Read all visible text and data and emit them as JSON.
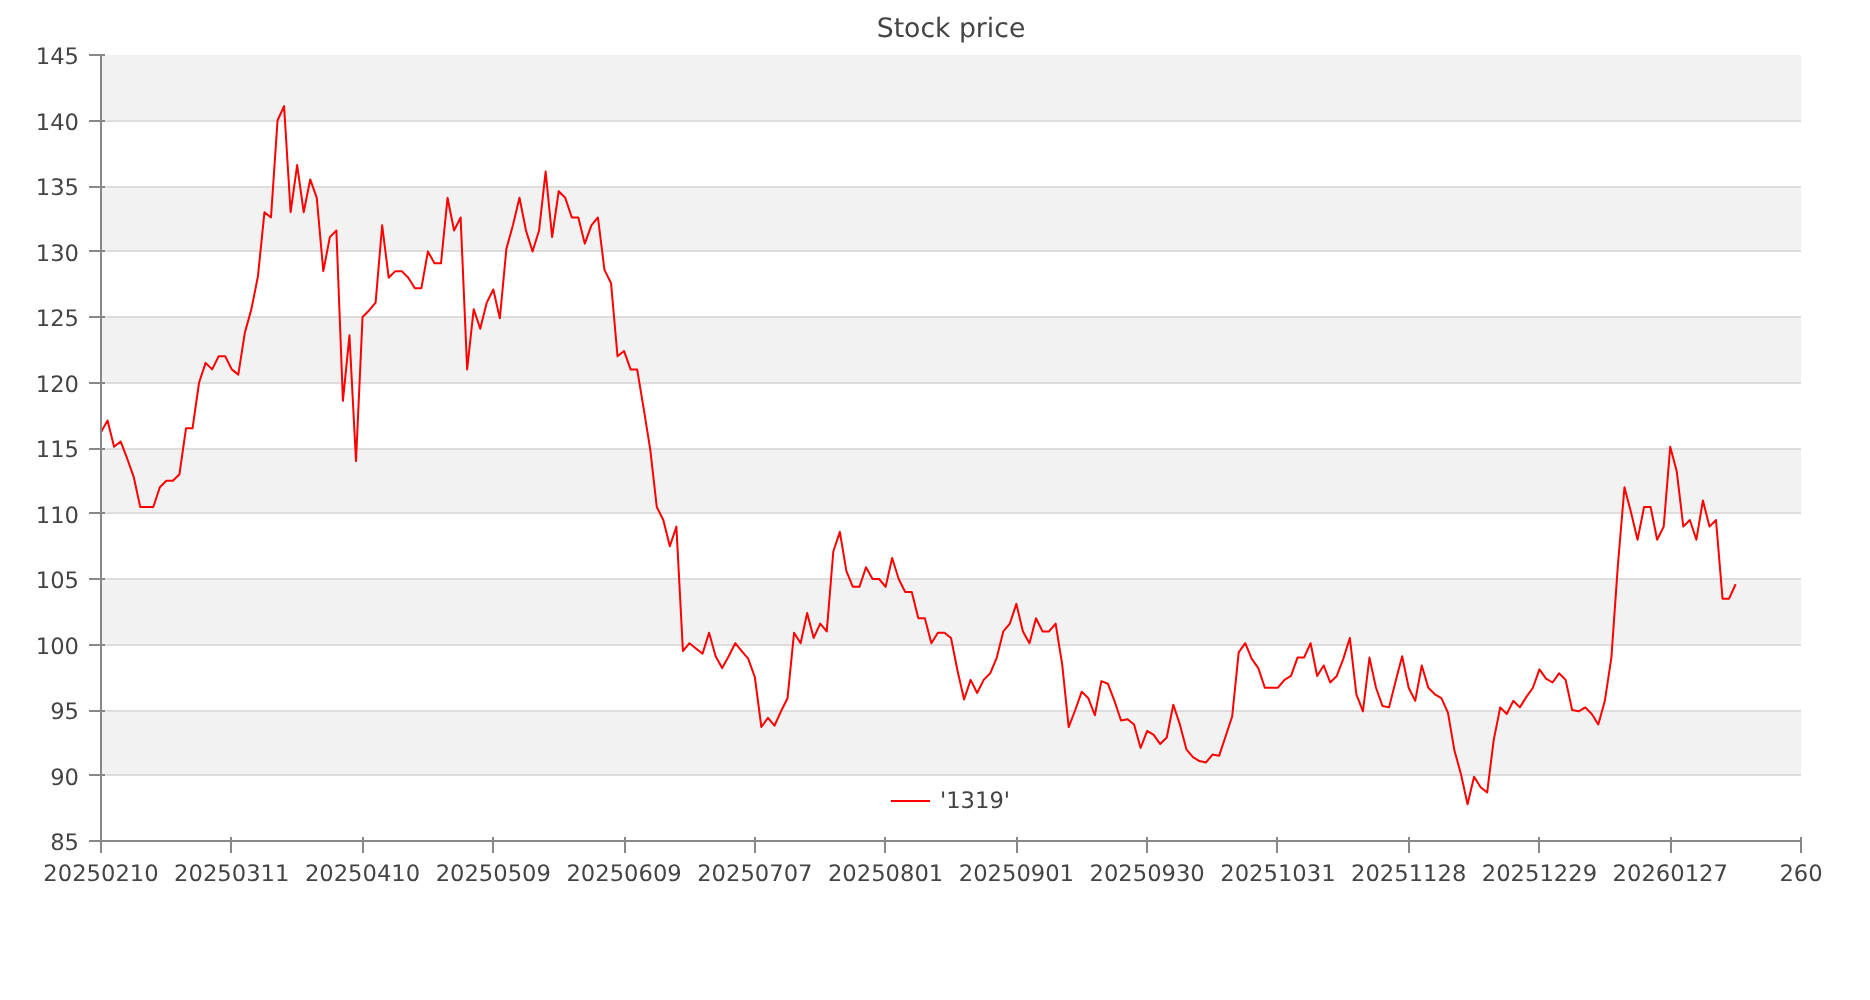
{
  "chart_data": {
    "type": "line",
    "title": "Stock price",
    "categories": [
      "20250210",
      null,
      null,
      null,
      null,
      null,
      null,
      null,
      null,
      null,
      null,
      null,
      null,
      null,
      null,
      null,
      null,
      null,
      null,
      null,
      "20250311",
      null,
      null,
      null,
      null,
      null,
      null,
      null,
      null,
      null,
      null,
      null,
      null,
      null,
      null,
      null,
      null,
      null,
      null,
      null,
      "20250410",
      null,
      null,
      null,
      null,
      null,
      null,
      null,
      null,
      null,
      null,
      null,
      null,
      null,
      null,
      null,
      null,
      null,
      null,
      null,
      "20250509",
      null,
      null,
      null,
      null,
      null,
      null,
      null,
      null,
      null,
      null,
      null,
      null,
      null,
      null,
      null,
      null,
      null,
      null,
      null,
      "20250609",
      null,
      null,
      null,
      null,
      null,
      null,
      null,
      null,
      null,
      null,
      null,
      null,
      null,
      null,
      null,
      null,
      null,
      null,
      null,
      "20250707",
      null,
      null,
      null,
      null,
      null,
      null,
      null,
      null,
      null,
      null,
      null,
      null,
      null,
      null,
      null,
      null,
      null,
      null,
      null,
      "20250801",
      null,
      null,
      null,
      null,
      null,
      null,
      null,
      null,
      null,
      null,
      null,
      null,
      null,
      null,
      null,
      null,
      null,
      null,
      null,
      "20250901",
      null,
      null,
      null,
      null,
      null,
      null,
      null,
      null,
      null,
      null,
      null,
      null,
      null,
      null,
      null,
      null,
      null,
      null,
      null,
      "20250930",
      null,
      null,
      null,
      null,
      null,
      null,
      null,
      null,
      null,
      null,
      null,
      null,
      null,
      null,
      null,
      null,
      null,
      null,
      null,
      "20251031",
      null,
      null,
      null,
      null,
      null,
      null,
      null,
      null,
      null,
      null,
      null,
      null,
      null,
      null,
      null,
      null,
      null,
      null,
      null,
      "20251128",
      null,
      null,
      null,
      null,
      null,
      null,
      null,
      null,
      null,
      null,
      null,
      null,
      null,
      null,
      null,
      null,
      null,
      null,
      null,
      "20251229",
      null,
      null,
      null,
      null,
      null,
      null,
      null,
      null,
      null,
      null,
      null,
      null,
      null,
      null,
      null,
      null,
      null,
      null,
      null,
      "20260127",
      null,
      null,
      null,
      null,
      null,
      null,
      null,
      null,
      null,
      null,
      null,
      null,
      null,
      null,
      null,
      null,
      null,
      null,
      null,
      "260"
    ],
    "series": [
      {
        "name": "'1319'",
        "color": "#ff0000",
        "values": [
          116.2,
          117.1,
          115.1,
          115.5,
          114.2,
          112.8,
          110.5,
          110.5,
          110.5,
          112.0,
          112.5,
          112.5,
          113.0,
          116.5,
          116.5,
          120.0,
          121.5,
          121.0,
          122.0,
          122.0,
          121.0,
          120.6,
          123.8,
          125.6,
          128.1,
          133.0,
          132.6,
          140.0,
          141.1,
          133.0,
          136.6,
          133.0,
          135.5,
          134.1,
          128.5,
          131.1,
          131.6,
          118.6,
          123.6,
          114.0,
          125.0,
          125.5,
          126.1,
          132.0,
          128.0,
          128.5,
          128.5,
          128.0,
          127.2,
          127.2,
          130.0,
          129.1,
          129.1,
          134.1,
          131.6,
          132.6,
          121.0,
          125.6,
          124.1,
          126.1,
          127.1,
          124.9,
          130.2,
          132.0,
          134.1,
          131.6,
          130.0,
          131.6,
          136.1,
          131.1,
          134.6,
          134.1,
          132.6,
          132.6,
          130.6,
          132.0,
          132.6,
          128.6,
          127.6,
          122.0,
          122.4,
          121.0,
          121.0,
          118.0,
          114.9,
          110.5,
          109.5,
          107.5,
          109.0,
          99.5,
          100.1,
          99.7,
          99.3,
          100.9,
          99.1,
          98.2,
          99.1,
          100.1,
          99.5,
          98.9,
          97.5,
          93.7,
          94.4,
          93.8,
          94.9,
          95.9,
          100.9,
          100.1,
          102.4,
          100.5,
          101.6,
          101.0,
          107.1,
          108.6,
          105.6,
          104.4,
          104.4,
          105.9,
          105.0,
          105.0,
          104.4,
          106.6,
          105.0,
          104.0,
          104.0,
          102.0,
          102.0,
          100.1,
          100.9,
          100.9,
          100.5,
          98.0,
          95.8,
          97.3,
          96.3,
          97.3,
          97.8,
          99.0,
          101.0,
          101.6,
          103.1,
          101.0,
          100.1,
          102.0,
          101.0,
          101.0,
          101.6,
          98.5,
          93.7,
          95.0,
          96.4,
          95.9,
          94.6,
          97.2,
          97.0,
          95.7,
          94.2,
          94.3,
          93.9,
          92.1,
          93.4,
          93.1,
          92.4,
          92.9,
          95.4,
          93.9,
          92.0,
          91.4,
          91.1,
          91.0,
          91.6,
          91.5,
          93.0,
          94.5,
          99.4,
          100.1,
          98.9,
          98.2,
          96.7,
          96.7,
          96.7,
          97.3,
          97.6,
          99.0,
          99.0,
          100.1,
          97.6,
          98.4,
          97.1,
          97.6,
          98.9,
          100.5,
          96.2,
          94.9,
          99.0,
          96.7,
          95.3,
          95.2,
          97.2,
          99.1,
          96.7,
          95.7,
          98.4,
          96.7,
          96.2,
          95.9,
          94.8,
          91.9,
          90.1,
          87.8,
          89.9,
          89.1,
          88.7,
          92.7,
          95.2,
          94.7,
          95.7,
          95.2,
          96.0,
          96.7,
          98.1,
          97.4,
          97.1,
          97.8,
          97.3,
          95.0,
          94.9,
          95.2,
          94.7,
          93.9,
          95.7,
          99.0,
          106.1,
          112.0,
          110.1,
          108.0,
          110.5,
          110.5,
          108.0,
          109.0,
          115.1,
          113.2,
          109.0,
          109.5,
          108.0,
          111.0,
          109.0,
          109.5,
          103.5,
          103.5,
          104.6,
          null,
          null,
          null,
          null,
          null,
          null,
          null,
          null,
          null,
          null
        ]
      }
    ],
    "ylim": [
      85,
      145
    ],
    "yticks": [
      85,
      90,
      95,
      100,
      105,
      110,
      115,
      120,
      125,
      130,
      135,
      140,
      145
    ],
    "grid": "y",
    "legend": "bottom",
    "line_style": "solid"
  }
}
